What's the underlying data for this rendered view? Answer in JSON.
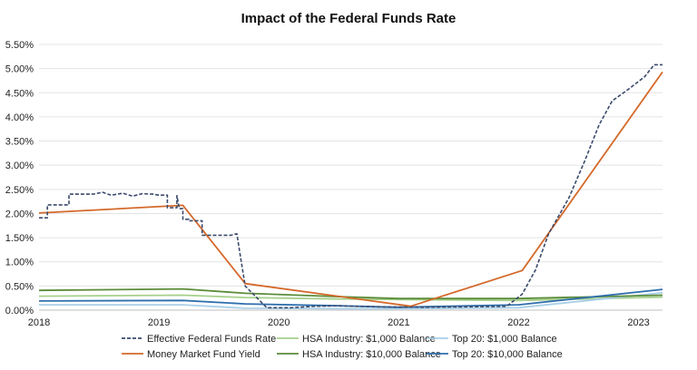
{
  "chart_data": {
    "type": "line",
    "title": "Impact of the Federal Funds Rate",
    "xlabel": "",
    "ylabel": "",
    "xlim": [
      2018.0,
      2023.2
    ],
    "ylim": [
      0,
      5.5
    ],
    "grid": "horizontal",
    "legend_position": "bottom",
    "x_ticks": [
      2018,
      2019,
      2020,
      2021,
      2022,
      2023
    ],
    "x_tick_labels": [
      "2018",
      "2019",
      "2020",
      "2021",
      "2022",
      "2023"
    ],
    "y_ticks": [
      0,
      0.5,
      1.0,
      1.5,
      2.0,
      2.5,
      3.0,
      3.5,
      4.0,
      4.5,
      5.0,
      5.5
    ],
    "y_tick_labels": [
      "0.00%",
      "0.50%",
      "1.00%",
      "1.50%",
      "2.00%",
      "2.50%",
      "3.00%",
      "3.50%",
      "4.00%",
      "4.50%",
      "5.00%",
      "5.50%"
    ],
    "series": [
      {
        "name": "Effective Federal Funds Rate",
        "color": "#3b4a6b",
        "style": "dashed-step",
        "x": [
          2018.0,
          2018.07,
          2018.07,
          2018.25,
          2018.25,
          2018.45,
          2018.45,
          2018.53,
          2018.6,
          2018.7,
          2018.78,
          2018.86,
          2018.95,
          2018.95,
          2019.0,
          2019.07,
          2019.07,
          2019.15,
          2019.15,
          2019.17,
          2019.2,
          2019.2,
          2019.25,
          2019.25,
          2019.28,
          2019.36,
          2019.36,
          2019.6,
          2019.65,
          2019.65,
          2019.68,
          2019.68,
          2019.72,
          2019.72,
          2019.9,
          2019.9,
          2020.1,
          2020.3,
          2020.5,
          2020.8,
          2021.2,
          2021.6,
          2021.9,
          2021.9,
          2022.03,
          2022.03,
          2022.14,
          2022.14,
          2022.25,
          2022.25,
          2022.42,
          2022.42,
          2022.55,
          2022.55,
          2022.67,
          2022.67,
          2022.78,
          2022.78,
          2022.92,
          2022.92,
          2023.05,
          2023.05,
          2023.13,
          2023.2
        ],
        "y": [
          1.91,
          1.91,
          2.18,
          2.18,
          2.4,
          2.4,
          2.4,
          2.44,
          2.38,
          2.42,
          2.36,
          2.41,
          2.4,
          2.4,
          2.38,
          2.38,
          2.12,
          2.12,
          2.37,
          2.1,
          2.1,
          1.88,
          1.88,
          1.85,
          1.85,
          1.85,
          1.55,
          1.55,
          1.58,
          1.58,
          1.1,
          1.1,
          0.5,
          0.5,
          0.05,
          0.05,
          0.05,
          0.08,
          0.09,
          0.07,
          0.06,
          0.07,
          0.08,
          0.08,
          0.33,
          0.33,
          0.83,
          0.83,
          1.58,
          1.58,
          2.33,
          2.33,
          3.08,
          3.08,
          3.83,
          3.83,
          4.33,
          4.33,
          4.58,
          4.58,
          4.83,
          4.83,
          5.08,
          5.08
        ]
      },
      {
        "name": "Money Market Fund Yield",
        "color": "#d4692a",
        "style": "solid",
        "x": [
          2018.0,
          2019.2,
          2019.72,
          2021.1,
          2022.03,
          2023.2
        ],
        "y": [
          2.01,
          2.17,
          0.55,
          0.08,
          0.82,
          4.93
        ]
      },
      {
        "name": "HSA Industry: $1,000 Balance",
        "color": "#a6d08b",
        "style": "solid",
        "x": [
          2018.0,
          2019.2,
          2019.72,
          2020.5,
          2021.0,
          2022.0,
          2023.2
        ],
        "y": [
          0.29,
          0.31,
          0.26,
          0.23,
          0.22,
          0.2,
          0.27
        ]
      },
      {
        "name": "Top 20: $1,000 Balance",
        "color": "#a9cfe8",
        "style": "solid",
        "x": [
          2018.0,
          2019.2,
          2019.72,
          2020.5,
          2021.0,
          2022.0,
          2023.2
        ],
        "y": [
          0.11,
          0.11,
          0.04,
          0.03,
          0.03,
          0.05,
          0.36
        ]
      },
      {
        "name": "HSA Industry: $10,000 Balance",
        "color": "#5b8c3a",
        "style": "solid",
        "x": [
          2018.0,
          2019.2,
          2019.72,
          2020.5,
          2021.0,
          2022.0,
          2023.2
        ],
        "y": [
          0.41,
          0.44,
          0.35,
          0.28,
          0.24,
          0.24,
          0.31
        ]
      },
      {
        "name": "Top 20: $10,000 Balance",
        "color": "#2f6fad",
        "style": "solid",
        "x": [
          2018.0,
          2019.2,
          2019.72,
          2020.5,
          2021.0,
          2022.0,
          2023.2
        ],
        "y": [
          0.19,
          0.2,
          0.13,
          0.09,
          0.06,
          0.11,
          0.43
        ]
      }
    ],
    "legend": [
      [
        "Effective Federal Funds Rate",
        "HSA Industry: $1,000 Balance",
        "Top 20: $1,000 Balance"
      ],
      [
        "Money Market Fund Yield",
        "HSA Industry: $10,000 Balance",
        "Top 20: $10,000 Balance"
      ]
    ]
  }
}
